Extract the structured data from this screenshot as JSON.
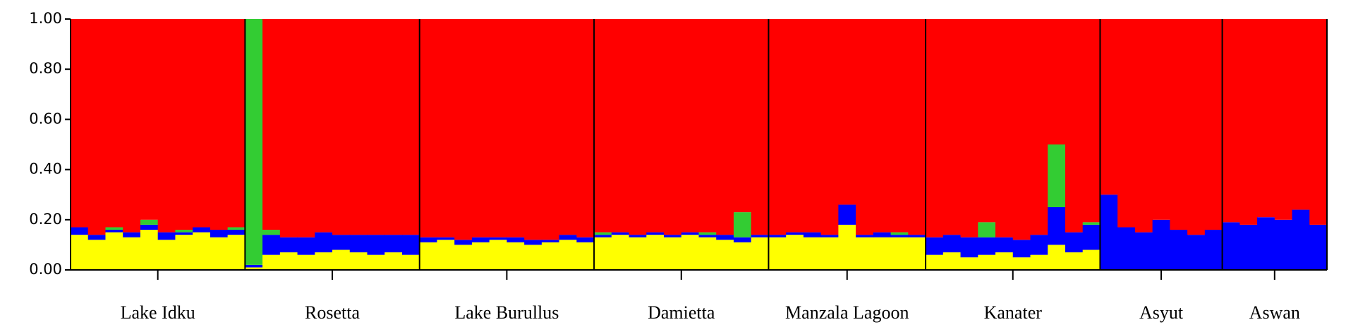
{
  "chart_data": {
    "type": "stacked_bar",
    "categories": [
      "Lake Idku",
      "Lake Idku",
      "Lake Idku",
      "Lake Idku",
      "Lake Idku",
      "Lake Idku",
      "Lake Idku",
      "Lake Idku",
      "Lake Idku",
      "Lake Idku",
      "Rosetta",
      "Rosetta",
      "Rosetta",
      "Rosetta",
      "Rosetta",
      "Rosetta",
      "Rosetta",
      "Rosetta",
      "Rosetta",
      "Rosetta",
      "Lake Burullus",
      "Lake Burullus",
      "Lake Burullus",
      "Lake Burullus",
      "Lake Burullus",
      "Lake Burullus",
      "Lake Burullus",
      "Lake Burullus",
      "Lake Burullus",
      "Lake Burullus",
      "Damietta",
      "Damietta",
      "Damietta",
      "Damietta",
      "Damietta",
      "Damietta",
      "Damietta",
      "Damietta",
      "Damietta",
      "Damietta",
      "Manzala Lagoon",
      "Manzala Lagoon",
      "Manzala Lagoon",
      "Manzala Lagoon",
      "Manzala Lagoon",
      "Manzala Lagoon",
      "Manzala Lagoon",
      "Manzala Lagoon",
      "Manzala Lagoon",
      "Kanater",
      "Kanater",
      "Kanater",
      "Kanater",
      "Kanater",
      "Kanater",
      "Kanater",
      "Kanater",
      "Kanater",
      "Kanater",
      "Asyut",
      "Asyut",
      "Asyut",
      "Asyut",
      "Asyut",
      "Asyut",
      "Asyut",
      "Aswan",
      "Aswan",
      "Aswan",
      "Aswan",
      "Aswan",
      "Aswan"
    ],
    "series": [
      {
        "color": "#ffff00",
        "values": [
          0.14,
          0.12,
          0.15,
          0.13,
          0.16,
          0.12,
          0.14,
          0.15,
          0.13,
          0.14,
          0.01,
          0.06,
          0.07,
          0.06,
          0.07,
          0.08,
          0.07,
          0.06,
          0.07,
          0.06,
          0.11,
          0.12,
          0.1,
          0.11,
          0.12,
          0.11,
          0.1,
          0.11,
          0.12,
          0.11,
          0.13,
          0.14,
          0.13,
          0.14,
          0.13,
          0.14,
          0.13,
          0.12,
          0.11,
          0.13,
          0.13,
          0.14,
          0.13,
          0.13,
          0.18,
          0.13,
          0.13,
          0.13,
          0.13,
          0.06,
          0.07,
          0.05,
          0.06,
          0.07,
          0.05,
          0.06,
          0.1,
          0.07,
          0.08,
          0,
          0,
          0,
          0,
          0,
          0,
          0,
          0,
          0,
          0,
          0,
          0,
          0
        ]
      },
      {
        "color": "#0000ff",
        "values": [
          0.03,
          0.02,
          0.01,
          0.02,
          0.02,
          0.03,
          0.01,
          0.02,
          0.03,
          0.02,
          0.01,
          0.08,
          0.06,
          0.07,
          0.08,
          0.06,
          0.07,
          0.08,
          0.07,
          0.08,
          0.02,
          0.01,
          0.02,
          0.02,
          0.01,
          0.02,
          0.02,
          0.01,
          0.02,
          0.02,
          0.01,
          0.01,
          0.01,
          0.01,
          0.01,
          0.01,
          0.01,
          0.02,
          0.02,
          0.01,
          0.01,
          0.01,
          0.02,
          0.01,
          0.08,
          0.01,
          0.02,
          0.01,
          0.01,
          0.07,
          0.07,
          0.08,
          0.07,
          0.06,
          0.07,
          0.08,
          0.15,
          0.08,
          0.1,
          0.3,
          0.17,
          0.15,
          0.2,
          0.16,
          0.14,
          0.16,
          0.19,
          0.18,
          0.21,
          0.2,
          0.24,
          0.18
        ]
      },
      {
        "color": "#33cc33",
        "values": [
          0,
          0,
          0.01,
          0,
          0.02,
          0,
          0.01,
          0,
          0,
          0.01,
          0.98,
          0.02,
          0,
          0,
          0,
          0,
          0,
          0,
          0,
          0,
          0,
          0,
          0,
          0,
          0,
          0,
          0,
          0,
          0,
          0,
          0.01,
          0,
          0,
          0,
          0,
          0,
          0.01,
          0,
          0.1,
          0,
          0,
          0,
          0,
          0,
          0,
          0,
          0,
          0.01,
          0,
          0,
          0,
          0,
          0.06,
          0,
          0,
          0,
          0.25,
          0,
          0.01,
          0,
          0,
          0,
          0,
          0,
          0,
          0,
          0,
          0,
          0,
          0,
          0,
          0
        ]
      },
      {
        "color": "#ff0000",
        "values": [
          0.83,
          0.86,
          0.83,
          0.85,
          0.8,
          0.85,
          0.84,
          0.83,
          0.84,
          0.83,
          0,
          0.84,
          0.87,
          0.87,
          0.85,
          0.86,
          0.86,
          0.86,
          0.86,
          0.86,
          0.87,
          0.87,
          0.88,
          0.87,
          0.87,
          0.87,
          0.88,
          0.88,
          0.86,
          0.87,
          0.85,
          0.85,
          0.86,
          0.85,
          0.86,
          0.85,
          0.85,
          0.86,
          0.77,
          0.86,
          0.86,
          0.85,
          0.85,
          0.86,
          0.74,
          0.86,
          0.85,
          0.85,
          0.86,
          0.87,
          0.86,
          0.87,
          0.81,
          0.87,
          0.88,
          0.86,
          0.5,
          0.85,
          0.81,
          0.7,
          0.83,
          0.85,
          0.8,
          0.84,
          0.86,
          0.84,
          0.81,
          0.82,
          0.79,
          0.8,
          0.76,
          0.82
        ]
      }
    ],
    "ylim": [
      0,
      1
    ],
    "yticks": [
      {
        "value": 0,
        "label": "0.00"
      },
      {
        "value": 0.2,
        "label": "0.20"
      },
      {
        "value": 0.4,
        "label": "0.40"
      },
      {
        "value": 0.6,
        "label": "0.60"
      },
      {
        "value": 0.8,
        "label": "0.80"
      },
      {
        "value": 1,
        "label": "1.00"
      }
    ]
  }
}
